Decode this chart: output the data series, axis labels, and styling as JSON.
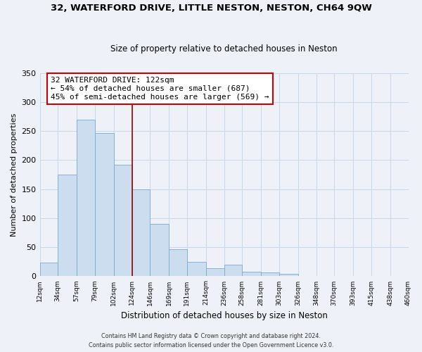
{
  "title": "32, WATERFORD DRIVE, LITTLE NESTON, NESTON, CH64 9QW",
  "subtitle": "Size of property relative to detached houses in Neston",
  "xlabel": "Distribution of detached houses by size in Neston",
  "ylabel": "Number of detached properties",
  "bar_left_edges": [
    12,
    34,
    57,
    79,
    102,
    124,
    146,
    169,
    191,
    214,
    236,
    258,
    281,
    303,
    326,
    348,
    370,
    393,
    415,
    438
  ],
  "bar_heights": [
    23,
    175,
    270,
    246,
    192,
    150,
    90,
    46,
    25,
    14,
    20,
    8,
    6,
    4,
    0,
    0,
    0,
    0,
    0,
    0
  ],
  "bar_widths": [
    22,
    23,
    22,
    23,
    22,
    22,
    23,
    22,
    23,
    22,
    22,
    23,
    22,
    23,
    22,
    22,
    23,
    22,
    23,
    22
  ],
  "bar_color": "#ccddf0",
  "bar_edge_color": "#7aaacf",
  "tick_labels": [
    "12sqm",
    "34sqm",
    "57sqm",
    "79sqm",
    "102sqm",
    "124sqm",
    "146sqm",
    "169sqm",
    "191sqm",
    "214sqm",
    "236sqm",
    "258sqm",
    "281sqm",
    "303sqm",
    "326sqm",
    "348sqm",
    "370sqm",
    "393sqm",
    "415sqm",
    "438sqm",
    "460sqm"
  ],
  "tick_positions": [
    12,
    34,
    57,
    79,
    102,
    124,
    146,
    169,
    191,
    214,
    236,
    258,
    281,
    303,
    326,
    348,
    370,
    393,
    415,
    438,
    460
  ],
  "vline_x": 124,
  "vline_color": "#990000",
  "ylim": [
    0,
    350
  ],
  "xlim": [
    12,
    460
  ],
  "annotation_title": "32 WATERFORD DRIVE: 122sqm",
  "annotation_line1": "← 54% of detached houses are smaller (687)",
  "annotation_line2": "45% of semi-detached houses are larger (569) →",
  "footnote1": "Contains HM Land Registry data © Crown copyright and database right 2024.",
  "footnote2": "Contains public sector information licensed under the Open Government Licence v3.0.",
  "grid_color": "#c8d8e8",
  "background_color": "#eef2f8"
}
